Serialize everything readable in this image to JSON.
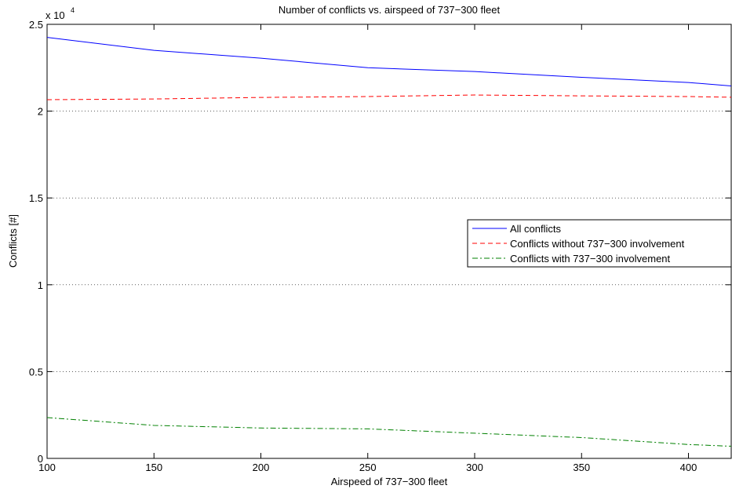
{
  "chart_data": {
    "type": "line",
    "title": "Number of conflicts vs. airspeed of 737−300 fleet",
    "xlabel": "Airspeed of 737−300 fleet",
    "ylabel": "Conflicts [#]",
    "y_multiplier": "x 10",
    "y_multiplier_exponent": "4",
    "x": [
      100,
      150,
      200,
      250,
      300,
      350,
      400,
      420
    ],
    "series": [
      {
        "name": "All conflicts",
        "color": "#0000ff",
        "dash": "solid",
        "values": [
          24250,
          23500,
          23050,
          22500,
          22280,
          21950,
          21650,
          21450
        ]
      },
      {
        "name": "Conflicts without 737−300 involvement",
        "color": "#ff0000",
        "dash": "dashed",
        "values": [
          20660,
          20700,
          20790,
          20840,
          20930,
          20880,
          20840,
          20800
        ]
      },
      {
        "name": "Conflicts with 737−300 involvement",
        "color": "#008000",
        "dash": "dashdot",
        "values": [
          2350,
          1900,
          1750,
          1700,
          1450,
          1200,
          800,
          700
        ]
      }
    ],
    "xlim": [
      100,
      420
    ],
    "xticks": [
      100,
      150,
      200,
      250,
      300,
      350,
      400
    ],
    "ylim": [
      0,
      25000
    ],
    "yticks": [
      {
        "value": 0,
        "label": "0"
      },
      {
        "value": 5000,
        "label": "0.5"
      },
      {
        "value": 10000,
        "label": "1"
      },
      {
        "value": 15000,
        "label": "1.5"
      },
      {
        "value": 20000,
        "label": "2"
      },
      {
        "value": 25000,
        "label": "2.5"
      }
    ],
    "grid": "y",
    "legend": "right"
  }
}
